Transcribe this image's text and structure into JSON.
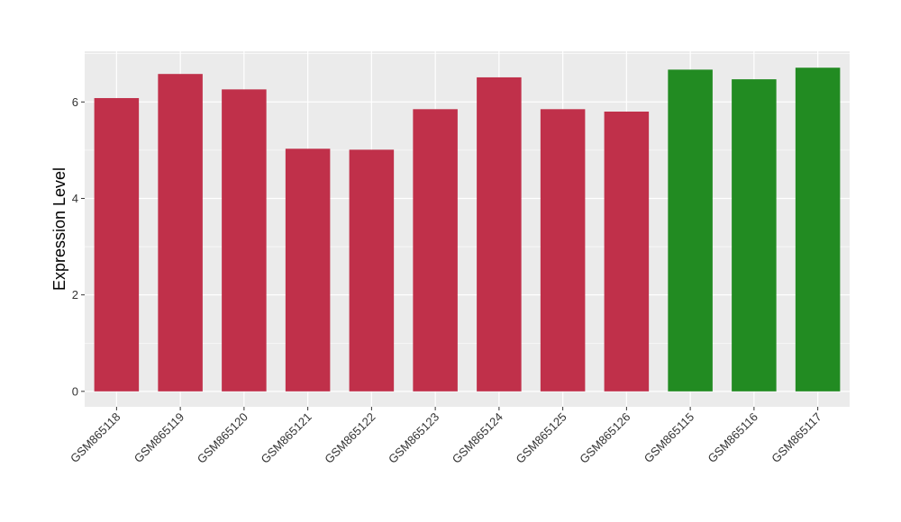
{
  "chart_data": {
    "type": "bar",
    "title": "",
    "xlabel": "",
    "ylabel": "Expression Level",
    "ylim": [
      -0.32,
      7.05
    ],
    "y_ticks": [
      0,
      2,
      4,
      6
    ],
    "y_tick_labels": [
      "0",
      "2",
      "4",
      "6"
    ],
    "grid": true,
    "legend": "none",
    "categories": [
      "GSM865118",
      "GSM865119",
      "GSM865120",
      "GSM865121",
      "GSM865122",
      "GSM865123",
      "GSM865124",
      "GSM865125",
      "GSM865126",
      "GSM865115",
      "GSM865116",
      "GSM865117"
    ],
    "values": [
      6.08,
      6.58,
      6.26,
      5.03,
      5.01,
      5.85,
      6.51,
      5.85,
      5.8,
      6.67,
      6.47,
      6.71
    ],
    "bar_colors": [
      "#c0304a",
      "#c0304a",
      "#c0304a",
      "#c0304a",
      "#c0304a",
      "#c0304a",
      "#c0304a",
      "#c0304a",
      "#c0304a",
      "#228b22",
      "#228b22",
      "#228b22"
    ],
    "panel_background": "#ebebeb",
    "grid_color": "#ffffff"
  }
}
